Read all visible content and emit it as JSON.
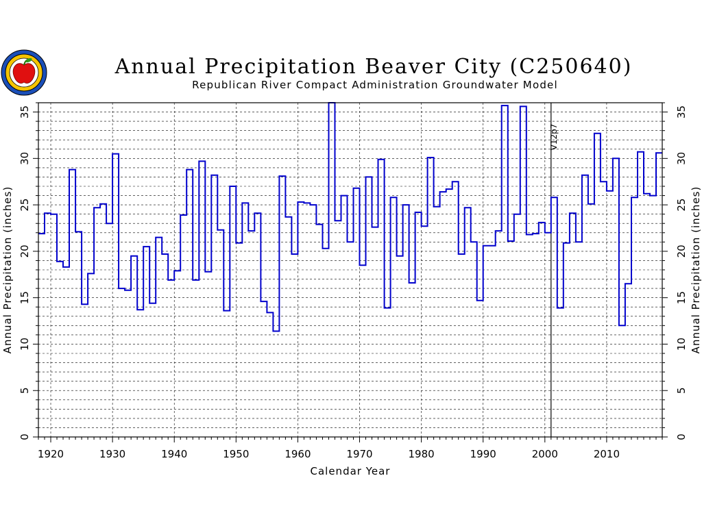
{
  "chart_data": {
    "type": "line",
    "step": true,
    "title": "Annual Precipitation Beaver City (C250640)",
    "subtitle": "Republican River Compact Administration Groundwater Model",
    "xlabel": "Calendar Year",
    "ylabel": "Annual Precipitation (inches)",
    "xlim": [
      1918,
      2019
    ],
    "ylim": [
      0,
      36
    ],
    "x_ticks": [
      1920,
      1930,
      1940,
      1950,
      1960,
      1970,
      1980,
      1990,
      2000,
      2010
    ],
    "y_ticks": [
      0,
      5,
      10,
      15,
      20,
      25,
      30,
      35
    ],
    "grid": true,
    "series_color": "#0000cc",
    "annotation": {
      "text": "V12p7",
      "x": 2001
    },
    "series": [
      {
        "x": [
          1918,
          1919,
          1920,
          1921,
          1922,
          1923,
          1924,
          1925,
          1926,
          1927,
          1928,
          1929,
          1930,
          1931,
          1932,
          1933,
          1934,
          1935,
          1936,
          1937,
          1938,
          1939,
          1940,
          1941,
          1942,
          1943,
          1944,
          1945,
          1946,
          1947,
          1948,
          1949,
          1950,
          1951,
          1952,
          1953,
          1954,
          1955,
          1956,
          1957,
          1958,
          1959,
          1960,
          1961,
          1962,
          1963,
          1964,
          1965,
          1966,
          1967,
          1968,
          1969,
          1970,
          1971,
          1972,
          1973,
          1974,
          1975,
          1976,
          1977,
          1978,
          1979,
          1980,
          1981,
          1982,
          1983,
          1984,
          1985,
          1986,
          1987,
          1988,
          1989,
          1990,
          1991,
          1992,
          1993,
          1994,
          1995,
          1996,
          1997,
          1998,
          1999,
          2000,
          2001,
          2002,
          2003,
          2004,
          2005,
          2006,
          2007,
          2008,
          2009,
          2010,
          2011,
          2012,
          2013,
          2014,
          2015,
          2016,
          2017,
          2018
        ],
        "values": [
          21.9,
          24.1,
          24.0,
          18.9,
          18.3,
          28.8,
          22.1,
          14.3,
          17.6,
          24.7,
          25.1,
          23.0,
          30.5,
          16.0,
          15.8,
          19.5,
          13.7,
          20.5,
          14.4,
          21.5,
          19.7,
          16.9,
          17.9,
          23.9,
          28.8,
          16.9,
          29.7,
          17.8,
          28.2,
          22.3,
          13.6,
          27.0,
          20.9,
          25.2,
          22.2,
          24.1,
          14.6,
          13.4,
          11.4,
          28.1,
          23.7,
          19.7,
          25.3,
          25.2,
          25.0,
          22.9,
          20.3,
          36.0,
          23.3,
          26.0,
          21.0,
          26.8,
          18.5,
          28.0,
          22.6,
          29.9,
          13.9,
          25.8,
          19.5,
          25.0,
          16.6,
          24.2,
          22.7,
          30.1,
          24.8,
          26.4,
          26.7,
          27.5,
          19.7,
          24.7,
          21.0,
          14.7,
          20.6,
          20.6,
          22.2,
          35.7,
          21.1,
          24.0,
          35.6,
          21.8,
          21.9,
          23.1,
          22.0,
          25.8,
          13.9,
          20.9,
          24.1,
          21.0,
          28.2,
          25.1,
          32.7,
          27.5,
          26.5,
          30.0,
          12.0,
          16.5,
          25.8,
          30.7,
          26.2,
          26.0,
          30.6
        ]
      }
    ]
  }
}
